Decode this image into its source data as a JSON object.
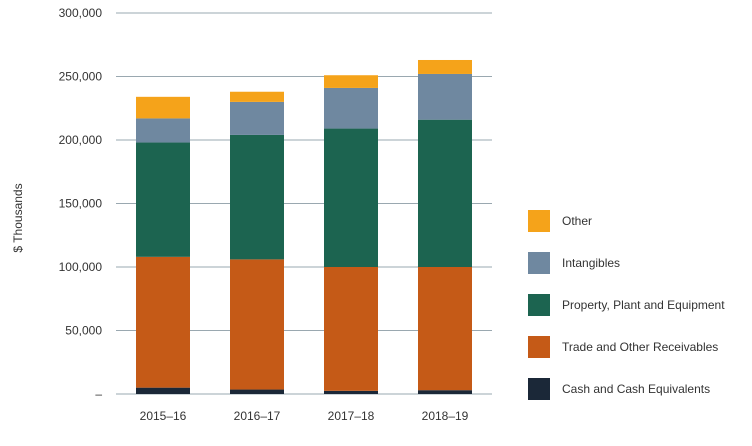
{
  "chart_data": {
    "type": "bar",
    "stacked": true,
    "categories": [
      "2015–16",
      "2016–17",
      "2017–18",
      "2018–19"
    ],
    "series": [
      {
        "name": "Cash and Cash Equivalents",
        "color": "#1b2838",
        "values": [
          5000,
          3500,
          2500,
          3000
        ]
      },
      {
        "name": "Trade and Other Receivables",
        "color": "#c55a17",
        "values": [
          103000,
          102500,
          97500,
          97000
        ]
      },
      {
        "name": "Property, Plant and Equipment",
        "color": "#1c6450",
        "values": [
          90000,
          98000,
          109000,
          116000
        ]
      },
      {
        "name": "Intangibles",
        "color": "#6f88a0",
        "values": [
          19000,
          26000,
          32000,
          36000
        ]
      },
      {
        "name": "Other",
        "color": "#f5a31a",
        "values": [
          17000,
          8000,
          10000,
          11000
        ]
      }
    ],
    "ylabel": "$ Thousands",
    "ylim": [
      0,
      300000
    ],
    "yticks": [
      {
        "value": 0,
        "label": "–"
      },
      {
        "value": 50000,
        "label": "50,000"
      },
      {
        "value": 100000,
        "label": "100,000"
      },
      {
        "value": 150000,
        "label": "150,000"
      },
      {
        "value": 200000,
        "label": "200,000"
      },
      {
        "value": 250000,
        "label": "250,000"
      },
      {
        "value": 300000,
        "label": "300,000"
      }
    ],
    "grid": true,
    "legend_position": "right",
    "legend_order": [
      "Other",
      "Intangibles",
      "Property, Plant and Equipment",
      "Trade and Other Receivables",
      "Cash and Cash Equivalents"
    ]
  }
}
